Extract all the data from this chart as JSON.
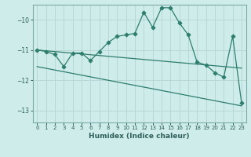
{
  "title": "",
  "xlabel": "Humidex (Indice chaleur)",
  "background_color": "#ceecea",
  "line_color": "#2e7d6e",
  "grid_color": "#b8d8d5",
  "xlim": [
    -0.5,
    23.5
  ],
  "ylim": [
    -13.4,
    -9.5
  ],
  "yticks": [
    -13,
    -12,
    -11,
    -10
  ],
  "xticks": [
    0,
    1,
    2,
    3,
    4,
    5,
    6,
    7,
    8,
    9,
    10,
    11,
    12,
    13,
    14,
    15,
    16,
    17,
    18,
    19,
    20,
    21,
    22,
    23
  ],
  "main_series_x": [
    0,
    1,
    2,
    3,
    4,
    5,
    6,
    7,
    8,
    9,
    10,
    11,
    12,
    13,
    14,
    15,
    16,
    17,
    18,
    19,
    20,
    21,
    22,
    23
  ],
  "main_series_y": [
    -11.0,
    -11.05,
    -11.15,
    -11.55,
    -11.1,
    -11.1,
    -11.35,
    -11.05,
    -10.75,
    -10.55,
    -10.5,
    -10.45,
    -9.75,
    -10.25,
    -9.6,
    -9.6,
    -10.1,
    -10.5,
    -11.4,
    -11.5,
    -11.75,
    -11.9,
    -10.55,
    -12.75
  ],
  "line2_x": [
    0,
    23
  ],
  "line2_y": [
    -11.0,
    -11.6
  ],
  "line3_x": [
    0,
    23
  ],
  "line3_y": [
    -11.55,
    -12.85
  ]
}
